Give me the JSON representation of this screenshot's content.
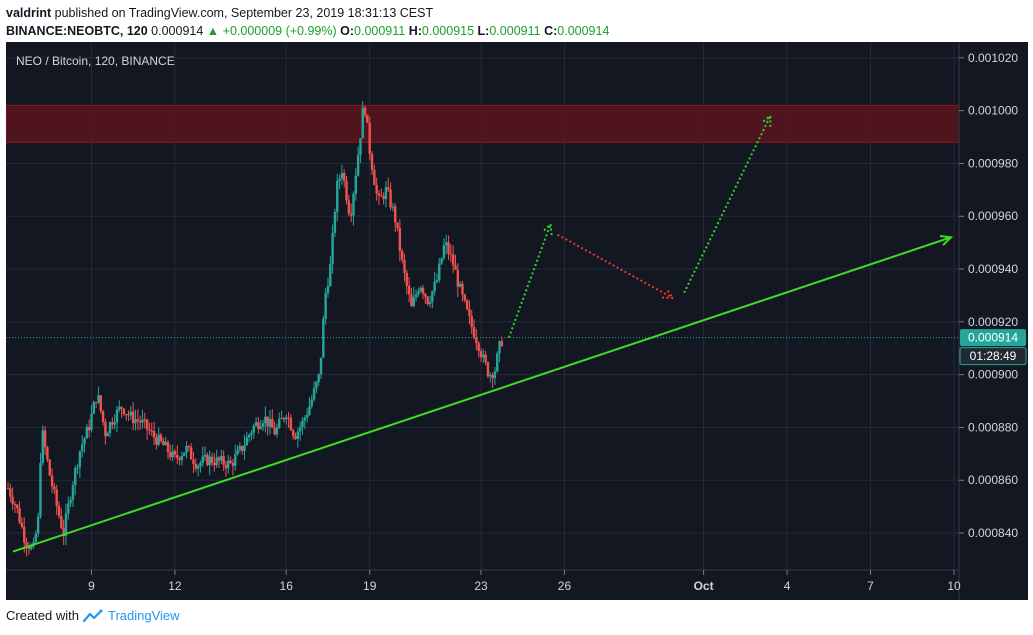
{
  "header": {
    "author": "valdrint",
    "published": " published on TradingView.com, September 23, 2019 18:31:13 CEST",
    "symbol": "BINANCE:NEOBTC, 120",
    "last": "0.000914",
    "change": "+0.000009 (+0.99%)",
    "o_label": "O:",
    "o": "0.000911",
    "h_label": "H:",
    "h": "0.000915",
    "l_label": "L:",
    "l": "0.000911",
    "c_label": "C:",
    "c": "0.000914"
  },
  "chart_title": "NEO / Bitcoin, 120, BINANCE",
  "price_badge": "0.000914",
  "timer_badge": "01:28:49",
  "footer": {
    "created": "Created with",
    "brand": "TradingView"
  },
  "colors": {
    "background": "#131722",
    "up": "#26a69a",
    "down": "#ef5350",
    "zone": "#5a141c",
    "zone_border": "#8a1a22",
    "trendline": "#3cdc2a",
    "projection_up": "#2ed12a",
    "projection_down": "#e53935",
    "price_line": "#26a69a"
  },
  "chart_data": {
    "type": "candlestick",
    "title": "NEO / Bitcoin, 120, BINANCE",
    "x_ticks": [
      "9",
      "12",
      "16",
      "19",
      "23",
      "26",
      "Oct",
      "4",
      "7",
      "10"
    ],
    "y_ticks": [
      "0.000840",
      "0.000860",
      "0.000880",
      "0.000900",
      "0.000920",
      "0.000940",
      "0.000960",
      "0.000980",
      "0.001000",
      "0.001020"
    ],
    "ylim": [
      0.000826,
      0.001026
    ],
    "x_domain_days": [
      "2019-09-06",
      "2019-10-10"
    ],
    "current_price": 0.000914,
    "resistance_zone": [
      0.000988,
      0.001002
    ],
    "trendline": {
      "from": [
        "2019-09-06",
        0.000833
      ],
      "to": [
        "2019-10-10",
        0.000952
      ]
    },
    "projection": [
      {
        "from": [
          "2019-09-24",
          0.000914
        ],
        "to": [
          "2019-09-25.5",
          0.000957
        ],
        "color": "up"
      },
      {
        "from": [
          "2019-09-25.75",
          0.000953
        ],
        "to": [
          "2019-09-29.9",
          0.000929
        ],
        "color": "down"
      },
      {
        "from": [
          "2019-09-30.3",
          0.000931
        ],
        "to": [
          "2019-10-03.4",
          0.000998
        ],
        "color": "up"
      }
    ],
    "price_path": [
      [
        6.0,
        0.000857
      ],
      [
        6.3,
        0.00085
      ],
      [
        6.6,
        0.000838
      ],
      [
        6.9,
        0.000833
      ],
      [
        7.1,
        0.000846
      ],
      [
        7.2,
        0.00088
      ],
      [
        7.5,
        0.000862
      ],
      [
        7.8,
        0.000848
      ],
      [
        8.0,
        0.00084
      ],
      [
        8.3,
        0.000858
      ],
      [
        8.6,
        0.000872
      ],
      [
        8.9,
        0.00088
      ],
      [
        9.2,
        0.000893
      ],
      [
        9.5,
        0.000878
      ],
      [
        9.8,
        0.000884
      ],
      [
        10.1,
        0.000888
      ],
      [
        10.4,
        0.000884
      ],
      [
        10.8,
        0.000882
      ],
      [
        11.2,
        0.000877
      ],
      [
        11.6,
        0.000873
      ],
      [
        12.0,
        0.000868
      ],
      [
        12.4,
        0.000872
      ],
      [
        12.8,
        0.000866
      ],
      [
        13.2,
        0.000868
      ],
      [
        13.6,
        0.000867
      ],
      [
        14.0,
        0.000866
      ],
      [
        14.4,
        0.000872
      ],
      [
        14.8,
        0.00088
      ],
      [
        15.2,
        0.000884
      ],
      [
        15.6,
        0.000878
      ],
      [
        16.0,
        0.000886
      ],
      [
        16.3,
        0.000877
      ],
      [
        16.6,
        0.000882
      ],
      [
        16.9,
        0.00089
      ],
      [
        17.2,
        0.0009
      ],
      [
        17.4,
        0.00093
      ],
      [
        17.6,
        0.000942
      ],
      [
        17.8,
        0.00097
      ],
      [
        18.0,
        0.000978
      ],
      [
        18.3,
        0.00096
      ],
      [
        18.6,
        0.000985
      ],
      [
        18.8,
        0.001004
      ],
      [
        19.0,
        0.000985
      ],
      [
        19.3,
        0.000965
      ],
      [
        19.6,
        0.00097
      ],
      [
        19.9,
        0.00096
      ],
      [
        20.2,
        0.00094
      ],
      [
        20.5,
        0.000925
      ],
      [
        20.8,
        0.000935
      ],
      [
        21.1,
        0.000928
      ],
      [
        21.4,
        0.000935
      ],
      [
        21.7,
        0.00095
      ],
      [
        22.0,
        0.000942
      ],
      [
        22.3,
        0.00093
      ],
      [
        22.6,
        0.00092
      ],
      [
        22.9,
        0.000912
      ],
      [
        23.1,
        0.000905
      ],
      [
        23.3,
        0.0009
      ],
      [
        23.5,
        0.000902
      ],
      [
        23.7,
        0.000912
      ],
      [
        23.8,
        0.000914
      ]
    ]
  }
}
